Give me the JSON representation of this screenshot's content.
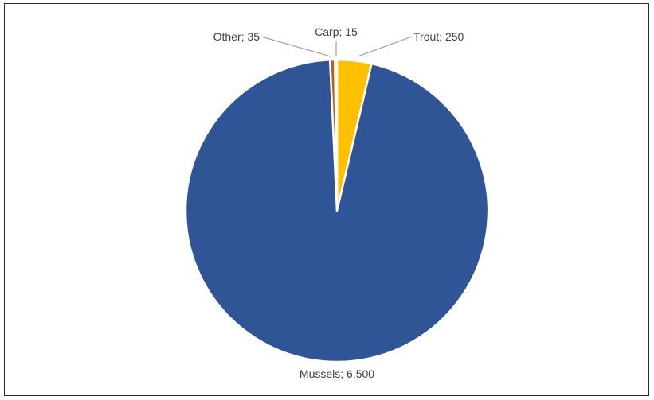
{
  "chart_data": {
    "type": "pie",
    "title": "",
    "slices": [
      {
        "label": "Trout",
        "value": 250,
        "value_label": "250",
        "color": "#FFC000"
      },
      {
        "label": "Mussels",
        "value": 6500,
        "value_label": "6.500",
        "color": "#2F5597"
      },
      {
        "label": "Other",
        "value": 35,
        "value_label": "35",
        "color": "#C55A11"
      },
      {
        "label": "Carp",
        "value": 15,
        "value_label": "15",
        "color": "#7F7F7F"
      }
    ],
    "label_separator": "; ",
    "start_angle_deg": 0,
    "direction": "clockwise",
    "legend": "none"
  }
}
